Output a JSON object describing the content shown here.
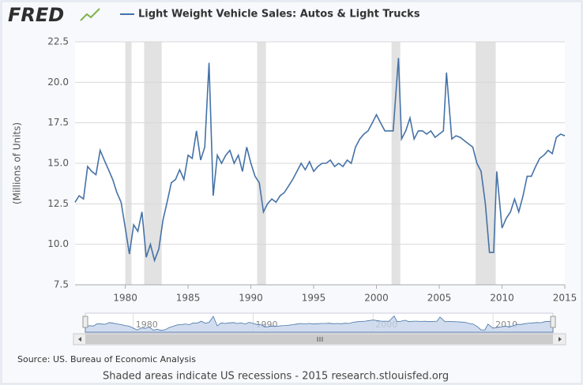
{
  "logo": "FRED",
  "chart_data": {
    "type": "line",
    "title": "Light Weight Vehicle Sales: Autos & Light Trucks",
    "ylabel": "(Millions of Units)",
    "source": "Source: US. Bureau of Economic Analysis",
    "footer": "Shaded areas indicate US recessions - 2015 research.stlouisfed.org",
    "xlim": [
      1976,
      2015
    ],
    "xticks": [
      1980,
      1985,
      1990,
      1995,
      2000,
      2005,
      2010,
      2015
    ],
    "ylim": [
      7.5,
      22.5
    ],
    "yticks": [
      7.5,
      {
        "value": 10,
        "label": "10.0"
      },
      12.5,
      {
        "value": 15,
        "label": "15.0"
      },
      17.5,
      {
        "value": 20,
        "label": "20.0"
      },
      22.5
    ],
    "grid": true,
    "recessions": [
      [
        1980.0,
        1980.5
      ],
      [
        1981.5,
        1982.9
      ],
      [
        1990.5,
        1991.2
      ],
      [
        2001.2,
        2001.9
      ],
      [
        2007.9,
        2009.5
      ]
    ],
    "navigator_xticks": [
      1980,
      1990,
      2000,
      2010
    ],
    "x": [
      1976,
      1976.33,
      1976.67,
      1977,
      1977.33,
      1977.67,
      1978,
      1978.33,
      1978.67,
      1979,
      1979.33,
      1979.67,
      1980,
      1980.33,
      1980.67,
      1981,
      1981.33,
      1981.67,
      1982,
      1982.33,
      1982.67,
      1983,
      1983.33,
      1983.67,
      1984,
      1984.33,
      1984.67,
      1985,
      1985.33,
      1985.67,
      1986,
      1986.33,
      1986.67,
      1987,
      1987.33,
      1987.67,
      1988,
      1988.33,
      1988.67,
      1989,
      1989.33,
      1989.67,
      1990,
      1990.33,
      1990.67,
      1991,
      1991.33,
      1991.67,
      1992,
      1992.33,
      1992.67,
      1993,
      1993.33,
      1993.67,
      1994,
      1994.33,
      1994.67,
      1995,
      1995.33,
      1995.67,
      1996,
      1996.33,
      1996.67,
      1997,
      1997.33,
      1997.67,
      1998,
      1998.33,
      1998.67,
      1999,
      1999.33,
      1999.67,
      2000,
      2000.33,
      2000.67,
      2001,
      2001.33,
      2001.75,
      2002,
      2002.33,
      2002.67,
      2003,
      2003.33,
      2003.67,
      2004,
      2004.33,
      2004.67,
      2005,
      2005.33,
      2005.58,
      2006,
      2006.33,
      2006.67,
      2007,
      2007.33,
      2007.67,
      2008,
      2008.33,
      2008.67,
      2009,
      2009.33,
      2009.58,
      2010,
      2010.33,
      2010.67,
      2011,
      2011.33,
      2011.67,
      2012,
      2012.33,
      2012.67,
      2013,
      2013.33,
      2013.67,
      2014,
      2014.33,
      2014.67,
      2015
    ],
    "series": [
      {
        "name": "Light Weight Vehicle Sales: Autos & Light Trucks",
        "color": "#4572a7",
        "values": [
          12.6,
          13.0,
          12.8,
          14.8,
          14.5,
          14.3,
          15.8,
          15.2,
          14.6,
          14.0,
          13.2,
          12.6,
          11.0,
          9.4,
          11.2,
          10.8,
          12.0,
          9.2,
          10.0,
          9.0,
          9.7,
          11.5,
          12.6,
          13.8,
          14.0,
          14.6,
          14.0,
          15.5,
          15.3,
          17.0,
          15.2,
          16.0,
          21.2,
          13.0,
          15.5,
          15.0,
          15.5,
          15.8,
          15.0,
          15.5,
          14.5,
          16.0,
          15.0,
          14.2,
          13.8,
          12.0,
          12.5,
          12.8,
          12.6,
          13.0,
          13.2,
          13.6,
          14.0,
          14.5,
          15.0,
          14.6,
          15.1,
          14.5,
          14.8,
          15.0,
          15.0,
          15.2,
          14.8,
          15.0,
          14.8,
          15.2,
          15.0,
          16.0,
          16.5,
          16.8,
          17.0,
          17.5,
          18.0,
          17.5,
          17.0,
          17.0,
          17.0,
          21.5,
          16.5,
          17.0,
          17.8,
          16.5,
          17.0,
          17.0,
          16.8,
          17.0,
          16.6,
          16.8,
          17.0,
          20.6,
          16.5,
          16.7,
          16.6,
          16.4,
          16.2,
          16.0,
          15.0,
          14.5,
          12.5,
          9.5,
          9.5,
          14.5,
          11.0,
          11.6,
          12.0,
          12.8,
          12.0,
          13.0,
          14.2,
          14.2,
          14.8,
          15.3,
          15.5,
          15.8,
          15.6,
          16.6,
          16.8,
          16.7
        ]
      }
    ]
  }
}
